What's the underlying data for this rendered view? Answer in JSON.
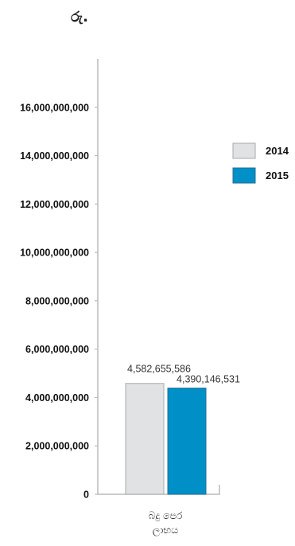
{
  "chart_data": {
    "type": "bar",
    "unit_label": "රු.",
    "categories": [
      "බදු පෙර ලාභය"
    ],
    "series": [
      {
        "name": "2014",
        "color": "#e1e2e4",
        "values": [
          4582655586
        ],
        "value_labels": [
          "4,582,655,586"
        ]
      },
      {
        "name": "2015",
        "color": "#0090c8",
        "values": [
          4390146531
        ],
        "value_labels": [
          "4,390,146,531"
        ]
      }
    ],
    "ylim": [
      0,
      18000000000
    ],
    "yticks": [
      0,
      2000000000,
      4000000000,
      6000000000,
      8000000000,
      10000000000,
      12000000000,
      14000000000,
      16000000000
    ],
    "ytick_labels": [
      "0",
      "2,000,000,000",
      "4,000,000,000",
      "6,000,000,000",
      "8,000,000,000",
      "10,000,000,000",
      "12,000,000,000",
      "14,000,000,000",
      "16,000,000,000"
    ],
    "grid": false,
    "legend_position": "top-right",
    "title": "",
    "xlabel": "",
    "ylabel": ""
  }
}
